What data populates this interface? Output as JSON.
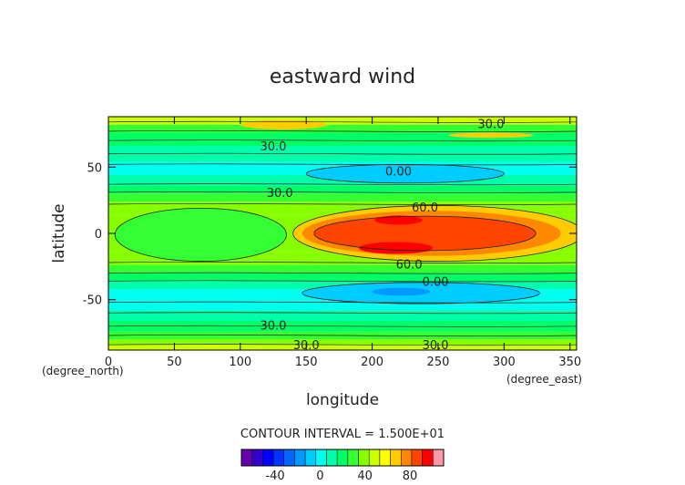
{
  "chart_data": {
    "type": "heatmap",
    "title": "eastward wind",
    "xlabel": "longitude",
    "ylabel": "latitude",
    "x_unit": "(degree_east)",
    "y_unit": "(degree_north)",
    "xlim": [
      0,
      355
    ],
    "ylim": [
      -88,
      88
    ],
    "x_ticks": [
      0,
      50,
      100,
      150,
      200,
      250,
      300,
      350
    ],
    "y_ticks": [
      -50,
      0,
      50
    ],
    "contour_interval_text": "CONTOUR INTERVAL = 1.500E+01",
    "contour_labels": [
      "30.0",
      "30.0",
      "0.00",
      "30.0",
      "60.0",
      "60.0",
      "0.00",
      "30.0",
      "30.0",
      "30.0"
    ],
    "colorbar": {
      "ticks": [
        -40,
        0,
        40,
        80
      ],
      "levels": [
        -60,
        -50,
        -40,
        -30,
        -20,
        -10,
        0,
        10,
        20,
        30,
        40,
        50,
        60,
        70,
        80,
        90,
        100
      ],
      "colors": [
        "#6600aa",
        "#3300cc",
        "#0000ff",
        "#0033ff",
        "#0066ff",
        "#0099ff",
        "#00ccff",
        "#00ffee",
        "#00ffaa",
        "#00ff66",
        "#33ff33",
        "#88ff00",
        "#ccff00",
        "#ffff00",
        "#ffcc00",
        "#ff8800",
        "#ff4400",
        "#ff0000",
        "#ff99aa"
      ]
    },
    "grid": false,
    "legend": "colorbar-bottom"
  }
}
